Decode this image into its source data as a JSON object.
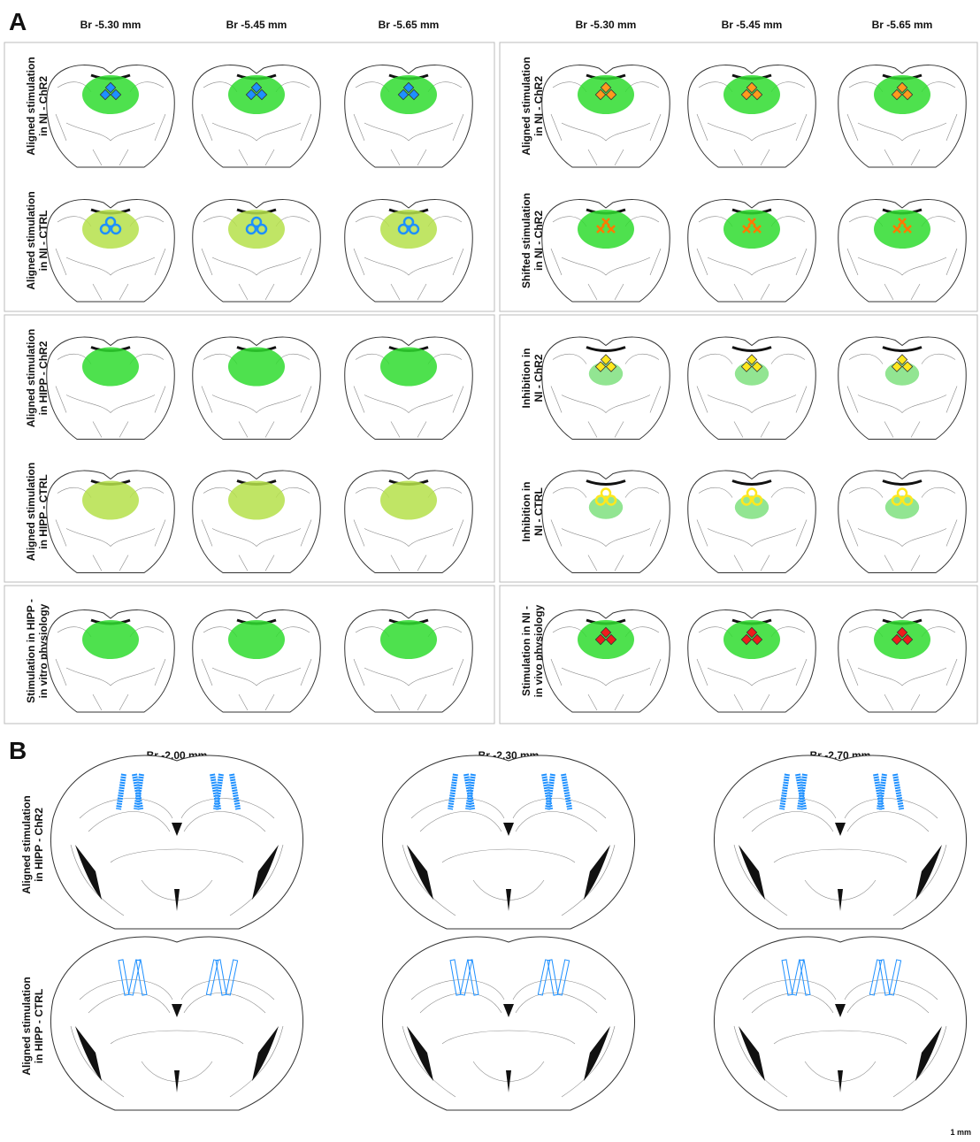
{
  "panel_a": {
    "label": "A",
    "columns": [
      "Br -5.30 mm",
      "Br -5.45 mm",
      "Br -5.65 mm",
      "Br -5.30 mm",
      "Br -5.45 mm",
      "Br -5.65 mm"
    ],
    "boxes": [
      {
        "rows": [
          [
            "Aligned stimulation",
            "in NI - ChR2"
          ],
          [
            "Aligned stimulation",
            "in NI - CTRL"
          ]
        ]
      },
      {
        "rows": [
          [
            "Aligned stimulation",
            "in NI - ChR2"
          ],
          [
            "Shifted stimulation",
            "in NI  - ChR2"
          ]
        ]
      },
      {
        "rows": [
          [
            "Aligned stimulation",
            "in HIPP - ChR2"
          ],
          [
            "Aligned stimulation",
            "in HIPP - CTRL"
          ]
        ]
      },
      {
        "rows": [
          [
            "Inhibition in",
            "NI - ChR2"
          ],
          [
            "Inhibition in",
            "NI - CTRL"
          ]
        ]
      },
      {
        "rows": [
          [
            "Stimulation in HIPP -",
            "in vitro physiology"
          ]
        ]
      },
      {
        "rows": [
          [
            "Stimulation in NI -",
            "in vivo physiology"
          ]
        ]
      }
    ]
  },
  "panel_b": {
    "label": "B",
    "columns": [
      "Br -2.00 mm",
      "Br -2.30 mm",
      "Br -2.70 mm"
    ],
    "rows": [
      [
        "Aligned stimulation",
        "in HIPP - ChR2"
      ],
      [
        "Aligned stimulation",
        "in HIPP - CTRL"
      ]
    ],
    "scale_label": "1 mm"
  }
}
